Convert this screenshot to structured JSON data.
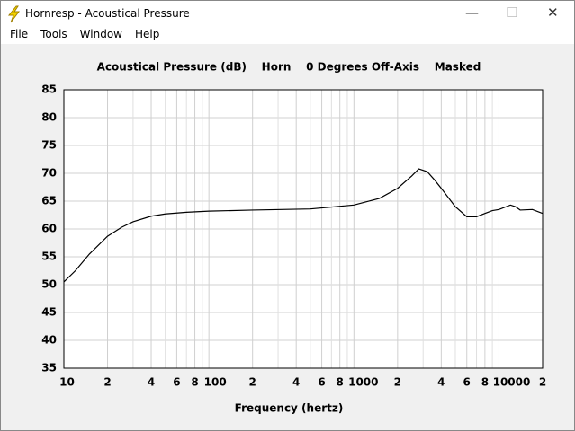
{
  "window": {
    "title": "Hornresp - Acoustical Pressure"
  },
  "menu": [
    "File",
    "Tools",
    "Window",
    "Help"
  ],
  "chart_data": {
    "type": "line",
    "title": "Acoustical Pressure (dB)    Horn    0 Degrees Off-Axis    Masked",
    "x_label": "Frequency (hertz)",
    "log_x": true,
    "grid": true,
    "xlim": [
      10,
      20000
    ],
    "ylim": [
      35,
      85
    ],
    "xticks": [
      10,
      {
        "value": 20,
        "label": "2"
      },
      {
        "value": 40,
        "label": "4"
      },
      {
        "value": 60,
        "label": "6"
      },
      {
        "value": 80,
        "label": "8"
      },
      100,
      {
        "value": 200,
        "label": "2"
      },
      {
        "value": 400,
        "label": "4"
      },
      {
        "value": 600,
        "label": "6"
      },
      {
        "value": 800,
        "label": "8"
      },
      1000,
      {
        "value": 2000,
        "label": "2"
      },
      {
        "value": 4000,
        "label": "4"
      },
      {
        "value": 6000,
        "label": "6"
      },
      {
        "value": 8000,
        "label": "8"
      },
      10000,
      {
        "value": 20000,
        "label": "2"
      }
    ],
    "minor_xticks": [
      30,
      50,
      70,
      90,
      300,
      500,
      700,
      900,
      3000,
      5000,
      7000,
      9000
    ],
    "yticks": [
      35,
      40,
      45,
      50,
      55,
      60,
      65,
      70,
      75,
      80,
      85
    ],
    "series": [
      {
        "color": "#000000",
        "x": [
          10,
          12,
          15,
          20,
          25,
          30,
          40,
          50,
          70,
          100,
          200,
          500,
          1000,
          1500,
          2000,
          2500,
          2800,
          3200,
          3600,
          4000,
          5000,
          6000,
          7000,
          8000,
          9000,
          10000,
          12000,
          13000,
          14000,
          17000,
          20000
        ],
        "values": [
          50.5,
          52.5,
          55.5,
          58.7,
          60.3,
          61.3,
          62.3,
          62.7,
          63.0,
          63.2,
          63.4,
          63.6,
          64.3,
          65.5,
          67.3,
          69.5,
          70.8,
          70.3,
          68.8,
          67.3,
          64.0,
          62.2,
          62.2,
          62.8,
          63.3,
          63.5,
          64.3,
          64.0,
          63.4,
          63.5,
          62.8
        ]
      }
    ]
  }
}
